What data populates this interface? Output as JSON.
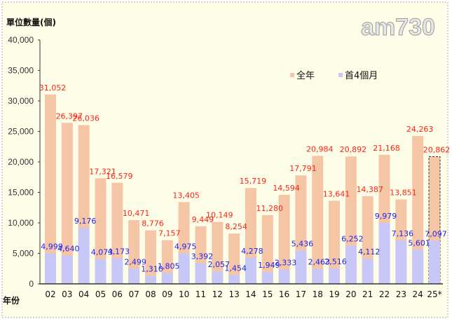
{
  "logo": "am730",
  "colors": {
    "full_year": "#f5c6a6",
    "first_4_months": "#c8c8f8",
    "full_label": "#ff2020",
    "first_label": "#2020ee",
    "background": "#fdfde8"
  },
  "chart_data": {
    "type": "bar",
    "title": "",
    "ylabel": "單位數量(個)",
    "xlabel": "年份",
    "ylim": [
      0,
      40000
    ],
    "yticks": [
      "0",
      "5,000",
      "10,000",
      "15,000",
      "20,000",
      "25,000",
      "30,000",
      "35,000",
      "40,000"
    ],
    "ytick_values": [
      0,
      5000,
      10000,
      15000,
      20000,
      25000,
      30000,
      35000,
      40000
    ],
    "grid": false,
    "legend_position": "top-right",
    "categories": [
      "02",
      "03",
      "04",
      "05",
      "06",
      "07",
      "08",
      "09",
      "10",
      "11",
      "12",
      "13",
      "14",
      "15",
      "16",
      "17",
      "18",
      "19",
      "20",
      "21",
      "22",
      "23",
      "24",
      "25*"
    ],
    "series": [
      {
        "name": "全年",
        "values": [
          31052,
          26397,
          26036,
          17321,
          16579,
          10471,
          8776,
          7157,
          13405,
          9449,
          10149,
          8254,
          15719,
          11280,
          14594,
          17791,
          20984,
          13641,
          20892,
          14387,
          21168,
          13851,
          24263,
          20862
        ],
        "labels": [
          "31,052",
          "26,397",
          "26,036",
          "17,321",
          "16,579",
          "10,471",
          "8,776",
          "7,157",
          "13,405",
          "9,449",
          "10,149",
          "8,254",
          "15,719",
          "11,280",
          "14,594",
          "17,791",
          "20,984",
          "13,641",
          "20,892",
          "14,387",
          "21,168",
          "13,851",
          "24,263",
          "20,862"
        ]
      },
      {
        "name": "首4個月",
        "values": [
          4999,
          4640,
          9176,
          4073,
          4173,
          2499,
          1310,
          1805,
          4975,
          3392,
          2057,
          1454,
          4278,
          1949,
          2333,
          5436,
          2463,
          2516,
          6252,
          4112,
          9979,
          7136,
          5601,
          7097
        ],
        "labels": [
          "4,999",
          "4,640",
          "9,176",
          "4,073",
          "4,173",
          "2,499",
          "1,310",
          "1,805",
          "4,975",
          "3,392",
          "2,057",
          "1,454",
          "4,278",
          "1,949",
          "2,333",
          "5,436",
          "2,463",
          "2,516",
          "6,252",
          "4,112",
          "9,979",
          "7,136",
          "5,601",
          "7,097"
        ]
      }
    ],
    "projected_category": "25*"
  }
}
